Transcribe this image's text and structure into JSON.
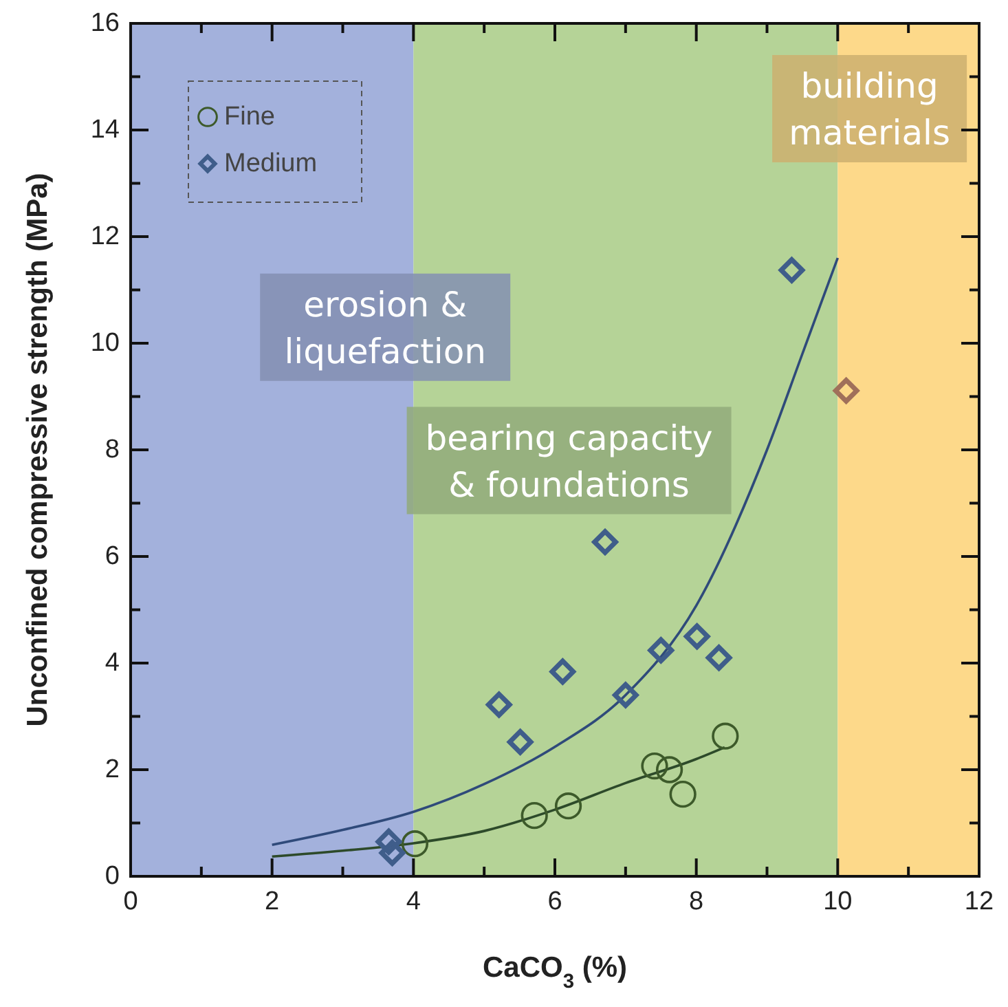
{
  "chart_data": {
    "type": "scatter",
    "xlabel": "CaCO$_{3}$ (%)",
    "ylabel": "Unconfined compressive strength (MPa)",
    "xlim": [
      0,
      12
    ],
    "ylim": [
      0,
      16
    ],
    "xticks": [
      0,
      {
        "value": 1,
        "label": null
      },
      2,
      {
        "value": 3,
        "label": null
      },
      4,
      {
        "value": 5,
        "label": null
      },
      6,
      {
        "value": 7,
        "label": null
      },
      8,
      {
        "value": 9,
        "label": null
      },
      10,
      {
        "value": 11,
        "label": null
      },
      12
    ],
    "yticks": [
      0,
      {
        "value": 1,
        "label": null
      },
      2,
      {
        "value": 3,
        "label": null
      },
      4,
      {
        "value": 5,
        "label": null
      },
      6,
      {
        "value": 7,
        "label": null
      },
      8,
      {
        "value": 9,
        "label": null
      },
      10,
      {
        "value": 11,
        "label": null
      },
      12,
      {
        "value": 13,
        "label": null
      },
      14,
      {
        "value": 15,
        "label": null
      },
      16
    ],
    "grid": false,
    "legend": "top left",
    "bands": [
      {
        "axis": "x",
        "from": 0,
        "to": 4,
        "label": "erosion & liquefaction",
        "color": "#a3b1dc"
      },
      {
        "axis": "x",
        "from": 4,
        "to": 10,
        "label": "bearing capacity & foundations",
        "color": "#b5d397"
      },
      {
        "axis": "x",
        "from": 10,
        "to": 12,
        "label": "building materials",
        "color": "#fdd98a"
      }
    ],
    "series": [
      {
        "name": "Fine",
        "marker": "circle",
        "color": "#3d5a2a",
        "x": [
          4.02,
          5.71,
          6.19,
          7.41,
          7.62,
          7.81,
          8.41
        ],
        "values": [
          0.61,
          1.14,
          1.32,
          2.07,
          2.0,
          1.54,
          2.63
        ]
      },
      {
        "name": "Medium",
        "marker": "diamond",
        "color": "#3f5d8a",
        "colors": [
          "#3f5d8a",
          "#3f5d8a",
          "#3f5d8a",
          "#3f5d8a",
          "#3f5d8a",
          "#3f5d8a",
          "#3f5d8a",
          "#3f5d8a",
          "#3f5d8a",
          "#3f5d8a",
          "#3f5d8a",
          "#a0705a"
        ],
        "x": [
          3.65,
          3.7,
          5.21,
          5.51,
          6.11,
          6.71,
          7.0,
          7.5,
          8.01,
          8.32,
          9.35,
          10.12
        ],
        "values": [
          0.65,
          0.44,
          3.22,
          2.52,
          3.84,
          6.27,
          3.4,
          4.24,
          4.5,
          4.1,
          11.37,
          9.11
        ]
      },
      {
        "type": "line",
        "marker": "none",
        "color": "#2f4a7a",
        "x": [
          2,
          3,
          4,
          5,
          6,
          7,
          8,
          9,
          9.5,
          10
        ],
        "values": [
          0.59,
          0.87,
          1.21,
          1.73,
          2.43,
          3.4,
          5.08,
          8.0,
          9.8,
          11.6
        ]
      },
      {
        "type": "line",
        "marker": "none",
        "color": "#2d4a2a",
        "x": [
          2,
          3,
          4,
          5,
          6,
          7,
          8,
          8.4
        ],
        "values": [
          0.37,
          0.48,
          0.62,
          0.85,
          1.25,
          1.75,
          2.2,
          2.42
        ]
      }
    ]
  }
}
